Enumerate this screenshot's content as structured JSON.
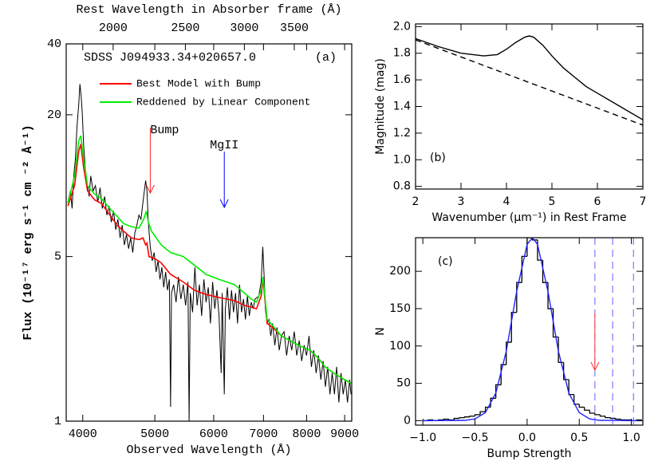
{
  "chart_data": [
    {
      "type": "line",
      "title": "SDSS J094933.34+020657.0",
      "panel_label": "(a)",
      "xlabel": "Observed Wavelength (Å)",
      "ylabel": "Flux (10⁻¹⁷ erg s⁻¹ cm ⁻² Å⁻¹)",
      "x2label": "Rest Wavelength in Absorber frame (Å)",
      "xscale": "log",
      "yscale": "log",
      "xlim": [
        3800,
        9200
      ],
      "ylim": [
        1,
        40
      ],
      "xticks": [
        4000,
        5000,
        6000,
        7000,
        8000,
        9000
      ],
      "yticks": [
        1,
        5,
        20,
        40
      ],
      "x2lim": [
        1730,
        4180
      ],
      "x2ticks": [
        2000,
        2500,
        3000,
        3500
      ],
      "series": [
        {
          "color": "#000000",
          "x": [
            3820,
            3850,
            3870,
            3890,
            3910,
            3930,
            3950,
            3965,
            3980,
            3995,
            4010,
            4030,
            4050,
            4080,
            4100,
            4130,
            4160,
            4190,
            4220,
            4250,
            4280,
            4310,
            4340,
            4370,
            4400,
            4430,
            4460,
            4490,
            4520,
            4550,
            4580,
            4610,
            4640,
            4670,
            4700,
            4730,
            4760,
            4790,
            4830,
            4860,
            4880,
            4900,
            4930,
            4960,
            4990,
            5020,
            5050,
            5080,
            5110,
            5140,
            5170,
            5200,
            5230,
            5250,
            5265,
            5300,
            5340,
            5380,
            5420,
            5460,
            5500,
            5540,
            5560,
            5580,
            5620,
            5660,
            5700,
            5740,
            5780,
            5820,
            5860,
            5900,
            5940,
            5980,
            6020,
            6060,
            6100,
            6140,
            6160,
            6200,
            6220,
            6260,
            6300,
            6340,
            6380,
            6420,
            6460,
            6500,
            6540,
            6580,
            6620,
            6660,
            6700,
            6740,
            6780,
            6820,
            6900,
            6950,
            6985,
            7010,
            7040,
            7080,
            7120,
            7160,
            7200,
            7250,
            7300,
            7350,
            7400,
            7460,
            7520,
            7580,
            7640,
            7700,
            7760,
            7820,
            7880,
            7940,
            8000,
            8060,
            8120,
            8180,
            8240,
            8300,
            8360,
            8420,
            8480,
            8540,
            8600,
            8660,
            8720,
            8780,
            8840,
            8900,
            8960,
            9020,
            9080,
            9140,
            9180
          ],
          "values": [
            8.5,
            9.5,
            8,
            11,
            13,
            18,
            22,
            27,
            24,
            20,
            15,
            12,
            10.5,
            9,
            11,
            9.5,
            10,
            8.5,
            9.8,
            8,
            9,
            7.5,
            8.2,
            7,
            7.8,
            6.5,
            7.2,
            6,
            6.8,
            5.6,
            6.2,
            5.4,
            6,
            5.2,
            6.3,
            6.8,
            7.5,
            7.2,
            9,
            10.5,
            9.5,
            7,
            5.5,
            4.8,
            5.2,
            4.3,
            4.8,
            4,
            4.5,
            3.7,
            4.3,
            3.6,
            4,
            1.15,
            3.5,
            3.8,
            3.2,
            4.1,
            3.3,
            3.8,
            3.1,
            3.9,
            1.0,
            3.5,
            2.9,
            4.5,
            3.1,
            3.8,
            2.8,
            4,
            3.2,
            3.7,
            2.6,
            3.9,
            3,
            3.6,
            2.8,
            1.6,
            3.5,
            1.3,
            3,
            3.7,
            2.7,
            3.6,
            2.9,
            3.5,
            2.6,
            3.8,
            2.9,
            3.3,
            2.7,
            3.4,
            2.8,
            3.2,
            3.0,
            3.3,
            3.4,
            3.9,
            5.5,
            4.3,
            3.0,
            2.6,
            2.7,
            2.3,
            2.6,
            2.1,
            2.5,
            2.0,
            2.3,
            2.4,
            1.9,
            2.3,
            2.0,
            2.4,
            1.9,
            2.2,
            1.8,
            2.1,
            1.9,
            2.3,
            1.7,
            2.0,
            1.6,
            1.9,
            1.5,
            1.8,
            1.4,
            1.7,
            1.3,
            1.6,
            1.3,
            1.7,
            1.2,
            1.6,
            1.3,
            1.5,
            1.2,
            1.5,
            1.3
          ]
        },
        {
          "name": "Best Model with Bump",
          "color": "#ff0000",
          "x": [
            3820,
            3900,
            3950,
            3975,
            4010,
            4060,
            4150,
            4240,
            4350,
            4450,
            4540,
            4650,
            4760,
            4820,
            4860,
            4880,
            4910,
            5000,
            5100,
            5250,
            5460,
            5650,
            5860,
            6100,
            6400,
            6600,
            6740,
            6850,
            6950,
            6990,
            7030,
            7080,
            7200,
            7400,
            7600,
            7800,
            8090,
            8300,
            8470,
            8700,
            9000,
            9180
          ],
          "values": [
            8.2,
            10,
            14,
            15,
            12,
            9.5,
            8.7,
            8.4,
            7.5,
            6.8,
            6.4,
            6.0,
            5.9,
            6.0,
            5.6,
            5.7,
            5.0,
            4.9,
            4.7,
            4.2,
            3.9,
            3.6,
            3.45,
            3.35,
            3.25,
            3.1,
            3.05,
            3.0,
            3.4,
            4.0,
            3.3,
            2.6,
            2.5,
            2.3,
            2.2,
            2.1,
            2.0,
            1.85,
            1.7,
            1.6,
            1.5,
            1.45
          ]
        },
        {
          "name": "Reddened by Linear Component",
          "color": "#00ee00",
          "x": [
            3820,
            3900,
            3950,
            3975,
            4010,
            4060,
            4150,
            4240,
            4350,
            4450,
            4540,
            4650,
            4760,
            4830,
            4870,
            4900,
            4950,
            5100,
            5250,
            5460,
            5650,
            5860,
            6100,
            6400,
            6600,
            6740,
            6850,
            6950,
            6990,
            7030,
            7080,
            7200,
            7400,
            7600,
            7800,
            8090,
            8300,
            8470,
            8700,
            9000,
            9180
          ],
          "values": [
            8.4,
            11,
            15.5,
            16.3,
            13,
            10,
            9.2,
            8.8,
            8.0,
            7.4,
            6.9,
            6.7,
            6.6,
            7.2,
            7.8,
            7.0,
            6.4,
            5.6,
            5.2,
            5.0,
            4.6,
            4.2,
            4.0,
            3.8,
            3.5,
            3.3,
            3.2,
            3.6,
            4.1,
            3.4,
            2.7,
            2.55,
            2.3,
            2.2,
            2.1,
            2.0,
            1.85,
            1.7,
            1.6,
            1.5,
            1.45
          ]
        }
      ],
      "annotations": [
        {
          "text": "Bump",
          "x": 4930,
          "color": "#ff2020"
        },
        {
          "text": "MgII",
          "x": 6200,
          "color": "#0000ff"
        }
      ]
    },
    {
      "type": "line",
      "panel_label": "(b)",
      "xlabel": "Wavenumber (μm⁻¹) in Rest Frame",
      "ylabel": "Magnitude (mag)",
      "xlim": [
        2,
        7
      ],
      "ylim": [
        0.78,
        2.02
      ],
      "xticks": [
        2,
        3,
        4,
        5,
        6,
        7
      ],
      "yticks": [
        0.8,
        {
          "value": 1,
          "label": "1.0"
        },
        1.2,
        1.4,
        1.6,
        1.8,
        {
          "value": 2,
          "label": "2.0"
        }
      ],
      "series": [
        {
          "color": "#000000",
          "style": "solid",
          "x": [
            2,
            2.5,
            3,
            3.5,
            3.8,
            4,
            4.2,
            4.4,
            4.5,
            4.6,
            4.8,
            5,
            5.25,
            5.5,
            5.75,
            6,
            6.5,
            7
          ],
          "values": [
            1.91,
            1.85,
            1.8,
            1.78,
            1.79,
            1.83,
            1.88,
            1.92,
            1.93,
            1.92,
            1.86,
            1.78,
            1.69,
            1.62,
            1.55,
            1.5,
            1.4,
            1.3
          ]
        },
        {
          "color": "#000000",
          "style": "dashed",
          "x": [
            2,
            7
          ],
          "values": [
            1.9,
            1.26
          ]
        }
      ]
    },
    {
      "type": "histogram",
      "panel_label": "(c)",
      "xlabel": "Bump Strength",
      "ylabel": "N",
      "xlim": [
        -1.07,
        1.11
      ],
      "ylim": [
        -6,
        245
      ],
      "xticks": [
        {
          "value": -1,
          "label": "−1.0"
        },
        {
          "value": -0.5,
          "label": "−0.5"
        },
        {
          "value": 0,
          "label": "0.0"
        },
        0.5,
        {
          "value": 1,
          "label": "1.0"
        }
      ],
      "yticks": [
        0,
        50,
        100,
        150,
        200
      ],
      "bins": [
        -1.0,
        -0.95,
        -0.9,
        -0.85,
        -0.8,
        -0.75,
        -0.7,
        -0.65,
        -0.6,
        -0.55,
        -0.5,
        -0.45,
        -0.4,
        -0.35,
        -0.3,
        -0.25,
        -0.2,
        -0.15,
        -0.1,
        -0.05,
        0,
        0.05,
        0.1,
        0.15,
        0.2,
        0.25,
        0.3,
        0.35,
        0.4,
        0.45,
        0.5,
        0.55,
        0.6,
        0.65,
        0.7,
        0.75,
        0.8,
        0.85,
        0.9,
        0.95,
        1.0,
        1.05,
        1.1
      ],
      "counts": [
        0,
        1,
        0,
        1,
        2,
        1,
        3,
        4,
        5,
        6,
        8,
        12,
        18,
        30,
        48,
        75,
        105,
        145,
        185,
        220,
        245,
        242,
        215,
        185,
        150,
        112,
        78,
        55,
        35,
        22,
        18,
        14,
        10,
        8,
        6,
        4,
        3,
        2,
        1,
        1,
        0,
        1
      ],
      "color": "#000000",
      "series": [
        {
          "color": "#2020ff",
          "style": "solid",
          "x": [
            -1.0,
            -0.6,
            -0.5,
            -0.4,
            -0.3,
            -0.2,
            -0.1,
            0,
            0.05,
            0.1,
            0.2,
            0.3,
            0.4,
            0.5,
            0.6,
            0.7,
            1.1
          ],
          "values": [
            0,
            0.4,
            2.3,
            10.8,
            37,
            93,
            173,
            236,
            245,
            236,
            173,
            93,
            37,
            10.8,
            2.3,
            0.4,
            0
          ]
        }
      ],
      "vlines": [
        0.65,
        0.82,
        1.02
      ],
      "vline_color": "#6060ff",
      "arrow_x": 0.65,
      "arrow_color": "#ff3030"
    }
  ]
}
